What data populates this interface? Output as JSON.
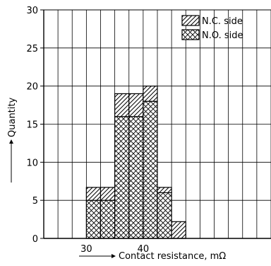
{
  "chart_data": {
    "type": "bar",
    "stacked": true,
    "xlabel": "Contact resistance, mΩ",
    "ylabel": "Quantity",
    "x_ticks": [
      30,
      40
    ],
    "y_ticks": [
      0,
      5,
      10,
      15,
      20,
      25,
      30
    ],
    "xlim": [
      22.5,
      62.5
    ],
    "ylim": [
      0,
      30
    ],
    "grid": true,
    "legend_position": "top-right",
    "bins": [
      {
        "x0": 30,
        "x1": 32.5
      },
      {
        "x0": 32.5,
        "x1": 35
      },
      {
        "x0": 35,
        "x1": 37.5
      },
      {
        "x0": 37.5,
        "x1": 40
      },
      {
        "x0": 40,
        "x1": 42.5
      },
      {
        "x0": 42.5,
        "x1": 45
      },
      {
        "x0": 45,
        "x1": 47.5
      }
    ],
    "series": [
      {
        "name": "N.O. side",
        "pattern": "crosshatch",
        "values": [
          5,
          5,
          16,
          16,
          18,
          6,
          0
        ]
      },
      {
        "name": "N.C. side",
        "pattern": "diagonal",
        "values": [
          1.7,
          1.7,
          3,
          3,
          2,
          0.7,
          2.2
        ]
      }
    ]
  }
}
